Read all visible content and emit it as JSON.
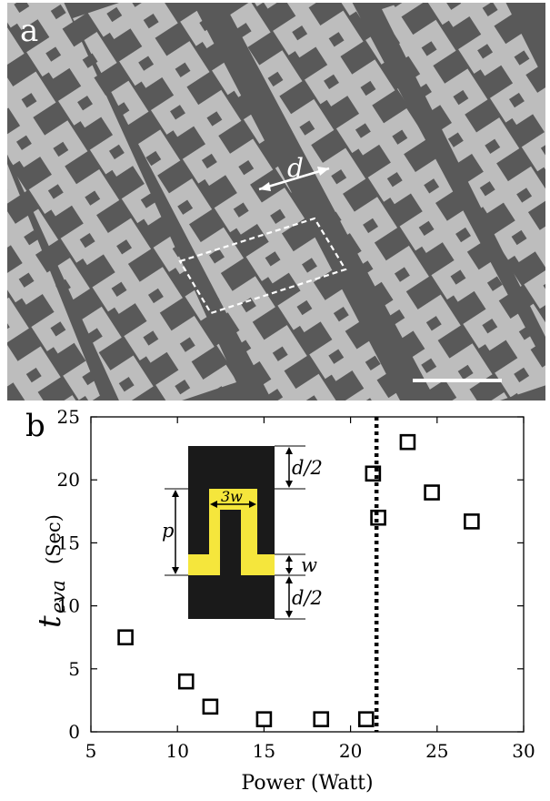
{
  "panels": {
    "a": {
      "label": "a",
      "annotation_d": "d"
    },
    "b": {
      "label": "b"
    }
  },
  "colors": {
    "sem_background": "#595959",
    "sem_stripe": "#bdbdbd",
    "inset_background": "#1a1a1a",
    "inset_pattern": "#f5e63c",
    "marker": "#000000"
  },
  "inset": {
    "d_half_top": "d/2",
    "d_half_bottom": "d/2",
    "w": "w",
    "p": "p",
    "three_w": "3w"
  },
  "chart_data": {
    "type": "scatter",
    "xlabel": "Power (Watt)",
    "ylabel_main": "t",
    "ylabel_sub": "eva",
    "ylabel_unit": "(Sec)",
    "xlim": [
      5,
      30
    ],
    "ylim": [
      0,
      25
    ],
    "xticks": [
      5,
      10,
      15,
      20,
      25,
      30
    ],
    "yticks": [
      0,
      5,
      10,
      15,
      20,
      25
    ],
    "grid": false,
    "marker": "open-square",
    "threshold_line_x": 21.5,
    "series": [
      {
        "points": [
          {
            "x": 7.0,
            "y": 7.5
          },
          {
            "x": 10.5,
            "y": 4.0
          },
          {
            "x": 11.9,
            "y": 2.0
          },
          {
            "x": 15.0,
            "y": 1.0
          },
          {
            "x": 18.3,
            "y": 1.0
          },
          {
            "x": 20.9,
            "y": 1.0
          },
          {
            "x": 21.3,
            "y": 20.5
          },
          {
            "x": 21.6,
            "y": 17.0
          },
          {
            "x": 23.3,
            "y": 23.0
          },
          {
            "x": 24.7,
            "y": 19.0
          },
          {
            "x": 27.0,
            "y": 16.7
          }
        ]
      }
    ]
  }
}
